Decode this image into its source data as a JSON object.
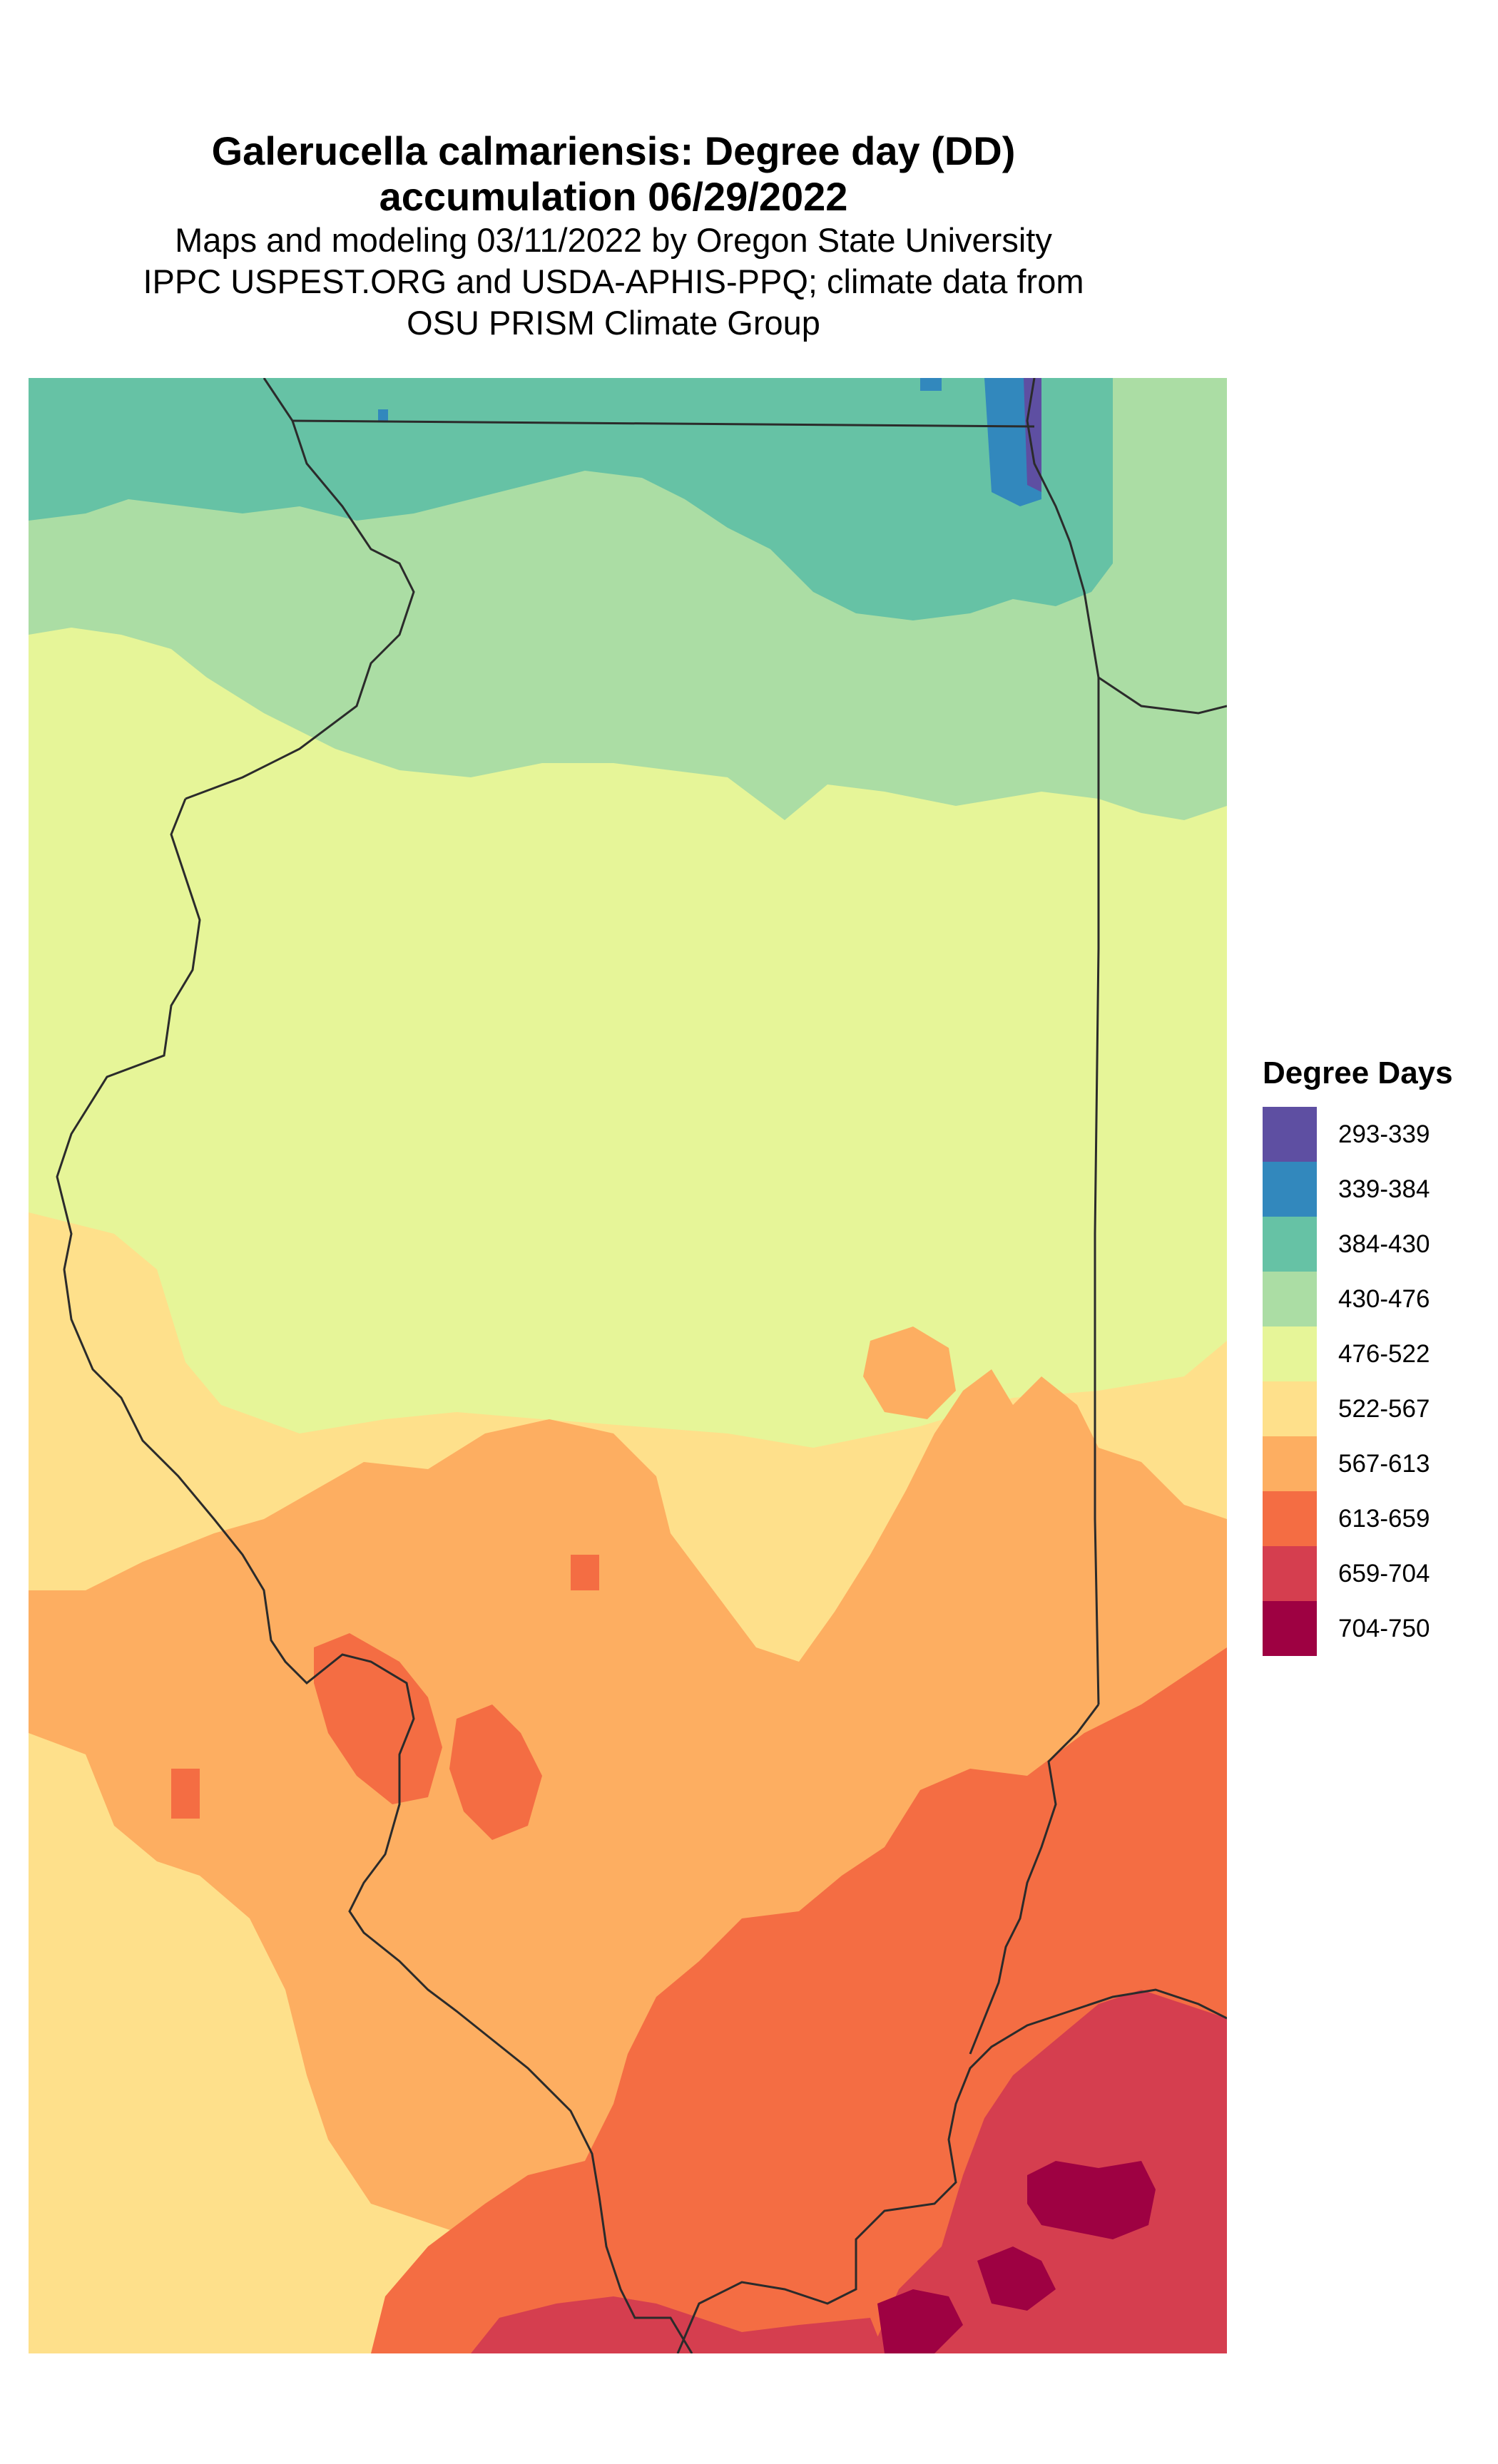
{
  "title": {
    "line1": "Galerucella calmariensis: Degree day (DD)",
    "line2": "accumulation 06/29/2022",
    "sub1": "Maps and modeling 03/11/2022 by Oregon State University",
    "sub2": "IPPC USPEST.ORG and USDA-APHIS-PPQ; climate data from",
    "sub3": "OSU PRISM Climate Group"
  },
  "legend": {
    "title": "Degree Days",
    "items": [
      {
        "label": "293-339",
        "color": "#5E4FA2"
      },
      {
        "label": "339-384",
        "color": "#3288BD"
      },
      {
        "label": "384-430",
        "color": "#66C2A5"
      },
      {
        "label": "430-476",
        "color": "#ABDDA4"
      },
      {
        "label": "476-522",
        "color": "#E6F598"
      },
      {
        "label": "522-567",
        "color": "#FEE08B"
      },
      {
        "label": "567-613",
        "color": "#FDAE61"
      },
      {
        "label": "613-659",
        "color": "#F46D43"
      },
      {
        "label": "659-704",
        "color": "#D53E4F"
      },
      {
        "label": "704-750",
        "color": "#9E0142"
      }
    ]
  }
}
